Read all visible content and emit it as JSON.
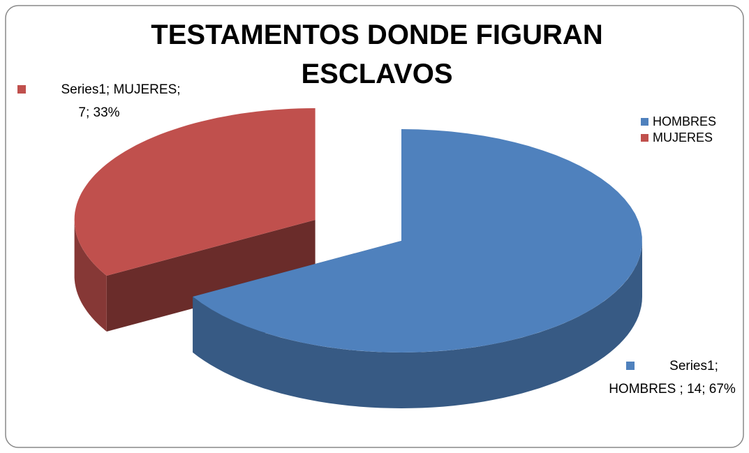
{
  "chart_data": {
    "type": "pie",
    "title": "TESTAMENTOS DONDE FIGURAN ESCLAVOS",
    "series": [
      {
        "name": "Series1",
        "colors": [
          "#4f81bd",
          "#c0504d"
        ],
        "values": [
          14,
          7
        ],
        "value_labels": [
          "Series1; HOMBRES ; 14; 67%",
          "Series1; MUJERES; 7; 33%"
        ]
      }
    ],
    "categories": [
      "HOMBRES",
      "MUJERES"
    ],
    "legend": "right"
  }
}
